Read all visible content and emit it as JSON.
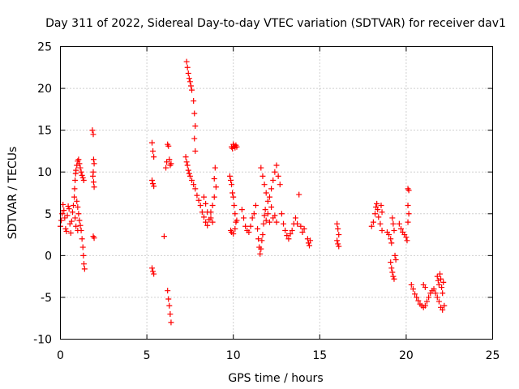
{
  "chart_data": {
    "type": "scatter",
    "title": "Day 311 of 2022, Sidereal Day-to-day VTEC variation (SDTVAR) for receiver dav1",
    "xlabel": "GPS time / hours",
    "ylabel": "SDTVAR / TECUs",
    "xlim": [
      0,
      25
    ],
    "ylim": [
      -10,
      25
    ],
    "xticks": [
      "0",
      "5",
      "10",
      "15",
      "20",
      "25"
    ],
    "yticks": [
      "-10",
      "-5",
      "0",
      "5",
      "10",
      "15",
      "20",
      "25"
    ],
    "grid": true,
    "marker": "+",
    "color": "#ff0000",
    "series": [
      {
        "name": "SDTVAR",
        "points": [
          [
            0.0,
            3.5
          ],
          [
            0.05,
            4.2
          ],
          [
            0.1,
            5.0
          ],
          [
            0.15,
            6.1
          ],
          [
            0.2,
            5.4
          ],
          [
            0.25,
            4.5
          ],
          [
            0.3,
            3.2
          ],
          [
            0.35,
            2.9
          ],
          [
            0.4,
            4.8
          ],
          [
            0.45,
            5.9
          ],
          [
            0.5,
            5.6
          ],
          [
            0.55,
            3.8
          ],
          [
            0.6,
            2.7
          ],
          [
            0.65,
            4.1
          ],
          [
            0.7,
            5.2
          ],
          [
            0.75,
            6.0
          ],
          [
            0.8,
            7.0
          ],
          [
            0.82,
            8.0
          ],
          [
            0.85,
            9.0
          ],
          [
            0.88,
            9.8
          ],
          [
            0.9,
            10.2
          ],
          [
            0.95,
            10.8
          ],
          [
            1.0,
            11.3
          ],
          [
            1.05,
            11.5
          ],
          [
            1.1,
            11.0
          ],
          [
            1.15,
            10.5
          ],
          [
            1.2,
            10.0
          ],
          [
            1.25,
            9.6
          ],
          [
            1.3,
            9.3
          ],
          [
            1.35,
            9.0
          ],
          [
            0.95,
            6.5
          ],
          [
            1.0,
            5.8
          ],
          [
            1.05,
            5.0
          ],
          [
            1.1,
            4.2
          ],
          [
            1.15,
            3.6
          ],
          [
            1.2,
            3.0
          ],
          [
            1.25,
            2.0
          ],
          [
            1.3,
            1.0
          ],
          [
            1.33,
            0.0
          ],
          [
            1.36,
            -1.0
          ],
          [
            1.4,
            -1.6
          ],
          [
            0.85,
            4.5
          ],
          [
            0.9,
            3.5
          ],
          [
            1.0,
            3.0
          ],
          [
            1.85,
            15.0
          ],
          [
            1.9,
            14.5
          ],
          [
            1.92,
            11.5
          ],
          [
            1.95,
            11.0
          ],
          [
            1.9,
            10.0
          ],
          [
            1.88,
            9.5
          ],
          [
            1.92,
            8.8
          ],
          [
            1.95,
            8.2
          ],
          [
            1.9,
            2.3
          ],
          [
            1.95,
            2.1
          ],
          [
            5.3,
            13.5
          ],
          [
            5.35,
            12.5
          ],
          [
            5.4,
            11.8
          ],
          [
            5.3,
            9.0
          ],
          [
            5.35,
            8.6
          ],
          [
            5.4,
            8.3
          ],
          [
            5.3,
            -1.5
          ],
          [
            5.35,
            -1.9
          ],
          [
            5.4,
            -2.2
          ],
          [
            6.0,
            2.3
          ],
          [
            6.1,
            10.5
          ],
          [
            6.15,
            11.2
          ],
          [
            6.2,
            13.3
          ],
          [
            6.25,
            13.1
          ],
          [
            6.3,
            11.5
          ],
          [
            6.35,
            10.8
          ],
          [
            6.4,
            11.0
          ],
          [
            6.2,
            -4.2
          ],
          [
            6.25,
            -5.2
          ],
          [
            6.3,
            -6.0
          ],
          [
            6.35,
            -7.0
          ],
          [
            6.4,
            -8.0
          ],
          [
            7.3,
            23.2
          ],
          [
            7.35,
            22.5
          ],
          [
            7.4,
            21.8
          ],
          [
            7.45,
            21.2
          ],
          [
            7.5,
            20.8
          ],
          [
            7.55,
            20.3
          ],
          [
            7.6,
            19.8
          ],
          [
            7.7,
            18.5
          ],
          [
            7.75,
            17.0
          ],
          [
            7.8,
            15.5
          ],
          [
            7.75,
            14.0
          ],
          [
            7.8,
            12.5
          ],
          [
            7.25,
            11.8
          ],
          [
            7.3,
            11.2
          ],
          [
            7.35,
            10.8
          ],
          [
            7.4,
            10.2
          ],
          [
            7.45,
            9.8
          ],
          [
            7.5,
            9.5
          ],
          [
            7.6,
            9.0
          ],
          [
            7.7,
            8.5
          ],
          [
            7.8,
            8.0
          ],
          [
            7.9,
            7.2
          ],
          [
            8.0,
            6.6
          ],
          [
            8.1,
            6.0
          ],
          [
            8.2,
            5.2
          ],
          [
            8.3,
            4.6
          ],
          [
            8.4,
            4.0
          ],
          [
            8.5,
            3.6
          ],
          [
            8.6,
            4.3
          ],
          [
            8.7,
            5.2
          ],
          [
            8.8,
            6.0
          ],
          [
            8.9,
            7.0
          ],
          [
            9.0,
            8.2
          ],
          [
            8.9,
            9.2
          ],
          [
            8.95,
            10.5
          ],
          [
            8.3,
            7.0
          ],
          [
            8.4,
            6.2
          ],
          [
            8.5,
            5.2
          ],
          [
            8.7,
            4.5
          ],
          [
            8.8,
            4.0
          ],
          [
            9.8,
            9.5
          ],
          [
            9.85,
            9.0
          ],
          [
            9.9,
            8.5
          ],
          [
            9.95,
            7.5
          ],
          [
            10.0,
            7.0
          ],
          [
            10.05,
            6.0
          ],
          [
            10.1,
            5.0
          ],
          [
            10.15,
            4.0
          ],
          [
            9.85,
            3.0
          ],
          [
            9.9,
            2.8
          ],
          [
            10.0,
            2.6
          ],
          [
            10.1,
            3.2
          ],
          [
            10.2,
            4.2
          ],
          [
            9.9,
            13.0
          ],
          [
            9.95,
            12.8
          ],
          [
            10.0,
            13.3
          ],
          [
            10.05,
            13.1
          ],
          [
            10.1,
            12.9
          ],
          [
            10.15,
            13.2
          ],
          [
            10.2,
            13.0
          ],
          [
            10.5,
            5.5
          ],
          [
            10.6,
            4.5
          ],
          [
            10.7,
            3.5
          ],
          [
            10.8,
            3.0
          ],
          [
            10.9,
            2.8
          ],
          [
            11.0,
            3.5
          ],
          [
            11.1,
            4.5
          ],
          [
            11.2,
            5.0
          ],
          [
            11.3,
            6.0
          ],
          [
            11.4,
            3.2
          ],
          [
            11.45,
            2.0
          ],
          [
            11.5,
            1.0
          ],
          [
            11.55,
            0.2
          ],
          [
            11.6,
            0.8
          ],
          [
            11.65,
            1.8
          ],
          [
            11.7,
            2.5
          ],
          [
            11.75,
            3.8
          ],
          [
            11.8,
            4.8
          ],
          [
            11.85,
            5.5
          ],
          [
            11.9,
            4.2
          ],
          [
            12.0,
            5.0
          ],
          [
            12.1,
            4.0
          ],
          [
            12.2,
            5.8
          ],
          [
            12.3,
            4.5
          ],
          [
            12.4,
            4.8
          ],
          [
            12.5,
            4.0
          ],
          [
            11.6,
            10.5
          ],
          [
            11.7,
            9.5
          ],
          [
            11.8,
            8.5
          ],
          [
            11.9,
            7.5
          ],
          [
            12.0,
            6.5
          ],
          [
            12.1,
            7.0
          ],
          [
            12.2,
            8.0
          ],
          [
            12.3,
            9.0
          ],
          [
            12.4,
            10.0
          ],
          [
            12.5,
            10.8
          ],
          [
            12.6,
            9.5
          ],
          [
            12.7,
            8.5
          ],
          [
            12.8,
            5.0
          ],
          [
            12.9,
            3.8
          ],
          [
            13.0,
            3.0
          ],
          [
            13.1,
            2.4
          ],
          [
            13.2,
            2.0
          ],
          [
            13.3,
            2.6
          ],
          [
            13.4,
            3.0
          ],
          [
            13.5,
            3.8
          ],
          [
            13.6,
            4.5
          ],
          [
            13.7,
            3.8
          ],
          [
            13.8,
            7.3
          ],
          [
            13.9,
            3.5
          ],
          [
            14.0,
            2.8
          ],
          [
            14.1,
            3.2
          ],
          [
            14.3,
            2.0
          ],
          [
            14.35,
            1.5
          ],
          [
            14.4,
            1.2
          ],
          [
            14.45,
            1.8
          ],
          [
            16.0,
            3.8
          ],
          [
            16.05,
            3.2
          ],
          [
            16.1,
            2.5
          ],
          [
            16.0,
            1.8
          ],
          [
            16.05,
            1.4
          ],
          [
            16.1,
            1.1
          ],
          [
            18.0,
            3.5
          ],
          [
            18.1,
            4.0
          ],
          [
            18.2,
            5.0
          ],
          [
            18.25,
            5.8
          ],
          [
            18.3,
            6.2
          ],
          [
            18.35,
            5.5
          ],
          [
            18.4,
            4.6
          ],
          [
            18.5,
            3.8
          ],
          [
            18.6,
            3.0
          ],
          [
            18.55,
            6.0
          ],
          [
            18.6,
            5.2
          ],
          [
            18.9,
            2.8
          ],
          [
            19.0,
            2.5
          ],
          [
            19.1,
            2.0
          ],
          [
            19.15,
            1.5
          ],
          [
            19.2,
            4.5
          ],
          [
            19.25,
            3.8
          ],
          [
            19.3,
            3.0
          ],
          [
            19.1,
            -0.8
          ],
          [
            19.15,
            -1.5
          ],
          [
            19.2,
            -2.0
          ],
          [
            19.25,
            -2.5
          ],
          [
            19.3,
            -2.8
          ],
          [
            19.35,
            0.0
          ],
          [
            19.4,
            -0.5
          ],
          [
            19.6,
            3.8
          ],
          [
            19.7,
            3.2
          ],
          [
            19.8,
            2.8
          ],
          [
            19.9,
            2.5
          ],
          [
            20.0,
            2.2
          ],
          [
            20.05,
            1.8
          ],
          [
            20.1,
            8.0
          ],
          [
            20.15,
            7.8
          ],
          [
            20.1,
            6.0
          ],
          [
            20.15,
            5.0
          ],
          [
            20.1,
            4.0
          ],
          [
            20.3,
            -3.5
          ],
          [
            20.4,
            -4.0
          ],
          [
            20.5,
            -4.6
          ],
          [
            20.6,
            -5.0
          ],
          [
            20.7,
            -5.4
          ],
          [
            20.8,
            -5.8
          ],
          [
            20.9,
            -6.0
          ],
          [
            21.0,
            -6.2
          ],
          [
            21.1,
            -6.0
          ],
          [
            21.2,
            -5.5
          ],
          [
            21.3,
            -5.0
          ],
          [
            21.4,
            -4.5
          ],
          [
            21.5,
            -4.2
          ],
          [
            21.6,
            -4.0
          ],
          [
            21.7,
            -4.5
          ],
          [
            21.8,
            -5.0
          ],
          [
            21.9,
            -5.5
          ],
          [
            22.0,
            -6.2
          ],
          [
            22.1,
            -6.5
          ],
          [
            22.2,
            -6.0
          ],
          [
            21.8,
            -2.5
          ],
          [
            21.85,
            -3.0
          ],
          [
            21.9,
            -3.5
          ],
          [
            21.95,
            -2.2
          ],
          [
            22.0,
            -2.8
          ],
          [
            22.05,
            -3.8
          ],
          [
            22.1,
            -4.5
          ],
          [
            22.15,
            -3.2
          ],
          [
            21.1,
            -3.8
          ],
          [
            21.0,
            -3.5
          ]
        ]
      }
    ]
  }
}
